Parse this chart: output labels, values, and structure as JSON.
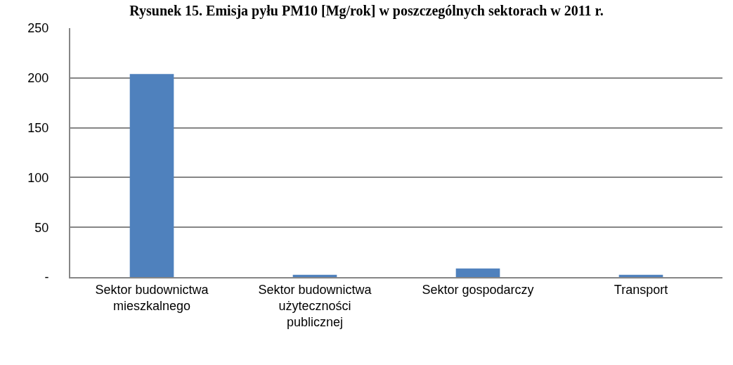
{
  "chart_data": {
    "type": "bar",
    "title": "Rysunek 15. Emisja pyłu PM10 [Mg/rok] w poszczególnych sektorach w 2011 r.",
    "categories": [
      "Sektor budownictwa mieszkalnego",
      "Sektor budownictwa użyteczności publicznej",
      "Sektor gospodarczy",
      "Transport"
    ],
    "values": [
      204,
      2.3,
      8.7,
      2.3
    ],
    "color": "#4f81bd",
    "ylim": [
      0,
      250
    ],
    "yticks": [
      {
        "value": 0,
        "label": "-"
      },
      50,
      100,
      150,
      200,
      250
    ],
    "grid": "y",
    "legend": false
  }
}
